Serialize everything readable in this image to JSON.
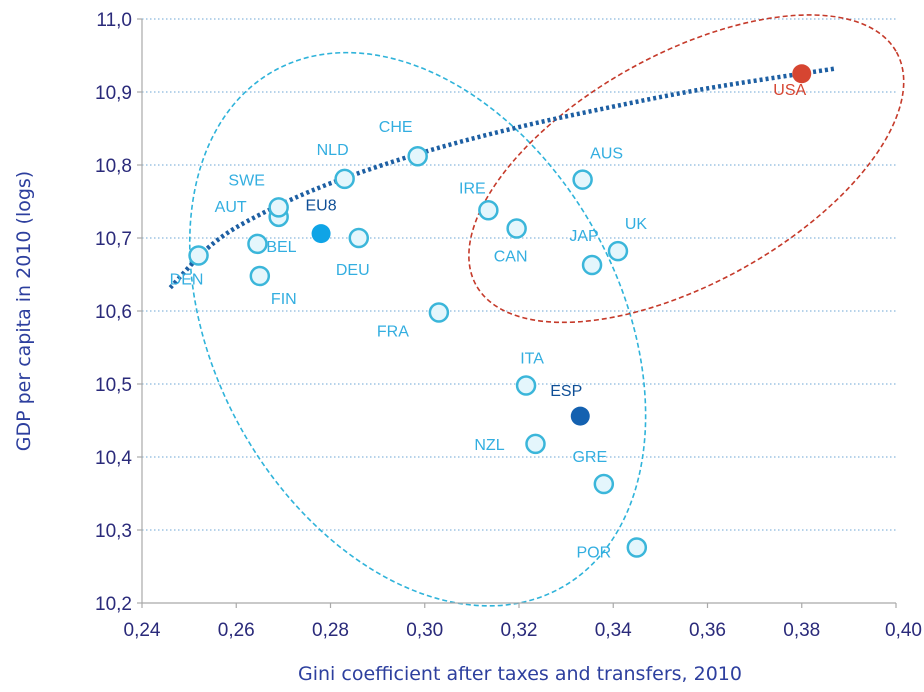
{
  "chart_data": {
    "type": "scatter",
    "xlabel": "Gini coefficient after taxes and transfers, 2010",
    "ylabel": "GDP per capita in 2010 (logs)",
    "xlim": [
      0.24,
      0.4
    ],
    "ylim": [
      10.2,
      11.0
    ],
    "x_ticks": [
      "0,24",
      "0,26",
      "0,28",
      "0,30",
      "0,32",
      "0,34",
      "0,36",
      "0,38",
      "0,40"
    ],
    "y_ticks": [
      "10,2",
      "10,3",
      "10,4",
      "10,5",
      "10,6",
      "10,7",
      "10,8",
      "10,9",
      "11,0"
    ],
    "grid": "horizontal dotted",
    "colors": {
      "point_stroke": "#3bb6da",
      "point_fill": "#e4f6fc",
      "label": "#33aee0",
      "eu8": "#0fa4e6",
      "esp": "#1461b0",
      "usa": "#d64531",
      "trend": "#1d5fa3",
      "ellipse_blue": "#2fb3da",
      "ellipse_red": "#c53a2a",
      "axis_text": "#2a2a7a"
    },
    "points": [
      {
        "label": "DEN",
        "x": 0.252,
        "y": 10.676,
        "style": "open",
        "lx": -12,
        "ly": 29
      },
      {
        "label": "BEL",
        "x": 0.2645,
        "y": 10.692,
        "style": "open",
        "lx": 24,
        "ly": 8
      },
      {
        "label": "FIN",
        "x": 0.265,
        "y": 10.648,
        "style": "open",
        "lx": 24,
        "ly": 28
      },
      {
        "label": "AUT",
        "x": 0.269,
        "y": 10.729,
        "style": "open",
        "lx": -48,
        "ly": -5
      },
      {
        "label": "SWE",
        "x": 0.269,
        "y": 10.742,
        "style": "open",
        "lx": -32,
        "ly": -22
      },
      {
        "label": "EU8",
        "x": 0.278,
        "y": 10.706,
        "style": "eu8",
        "lx": 0,
        "ly": -23
      },
      {
        "label": "DEU",
        "x": 0.286,
        "y": 10.7,
        "style": "open",
        "lx": -6,
        "ly": 37
      },
      {
        "label": "NLD",
        "x": 0.283,
        "y": 10.781,
        "style": "open",
        "lx": -12,
        "ly": -24
      },
      {
        "label": "CHE",
        "x": 0.2985,
        "y": 10.812,
        "style": "open",
        "lx": -22,
        "ly": -24
      },
      {
        "label": "FRA",
        "x": 0.303,
        "y": 10.598,
        "style": "open",
        "lx": -46,
        "ly": 24
      },
      {
        "label": "IRE",
        "x": 0.3135,
        "y": 10.738,
        "style": "open",
        "lx": -16,
        "ly": -17
      },
      {
        "label": "CAN",
        "x": 0.3195,
        "y": 10.713,
        "style": "open",
        "lx": -6,
        "ly": 33
      },
      {
        "label": "ITA",
        "x": 0.3215,
        "y": 10.498,
        "style": "open",
        "lx": 6,
        "ly": -22
      },
      {
        "label": "NZL",
        "x": 0.3235,
        "y": 10.418,
        "style": "open",
        "lx": -46,
        "ly": 6
      },
      {
        "label": "ESP",
        "x": 0.333,
        "y": 10.456,
        "style": "esp",
        "lx": -14,
        "ly": -20
      },
      {
        "label": "AUS",
        "x": 0.3335,
        "y": 10.78,
        "style": "open",
        "lx": 24,
        "ly": -21
      },
      {
        "label": "JAP",
        "x": 0.3355,
        "y": 10.663,
        "style": "open",
        "lx": -8,
        "ly": -24
      },
      {
        "label": "UK",
        "x": 0.341,
        "y": 10.682,
        "style": "open",
        "lx": 18,
        "ly": -22
      },
      {
        "label": "GRE",
        "x": 0.338,
        "y": 10.363,
        "style": "open",
        "lx": -14,
        "ly": -22
      },
      {
        "label": "POR",
        "x": 0.345,
        "y": 10.276,
        "style": "open",
        "lx": -43,
        "ly": 10
      },
      {
        "label": "USA",
        "x": 0.38,
        "y": 10.925,
        "style": "usa",
        "lx": -12,
        "ly": 21
      }
    ],
    "trend": {
      "type": "logarithmic",
      "points": [
        [
          0.246,
          10.632
        ],
        [
          0.255,
          10.692
        ],
        [
          0.265,
          10.732
        ],
        [
          0.28,
          10.775
        ],
        [
          0.3,
          10.818
        ],
        [
          0.32,
          10.852
        ],
        [
          0.34,
          10.88
        ],
        [
          0.36,
          10.905
        ],
        [
          0.387,
          10.932
        ]
      ]
    },
    "ellipses": [
      {
        "name": "blue-group",
        "cx": 0.2985,
        "cy": 10.575,
        "rx": 0.043,
        "ry": 0.405,
        "rotate": -29,
        "color": "#2fb3da"
      },
      {
        "name": "red-group",
        "cx": 0.3555,
        "cy": 10.795,
        "rx": 0.051,
        "ry": 0.157,
        "rotate": -29,
        "color": "#c53a2a"
      }
    ]
  }
}
